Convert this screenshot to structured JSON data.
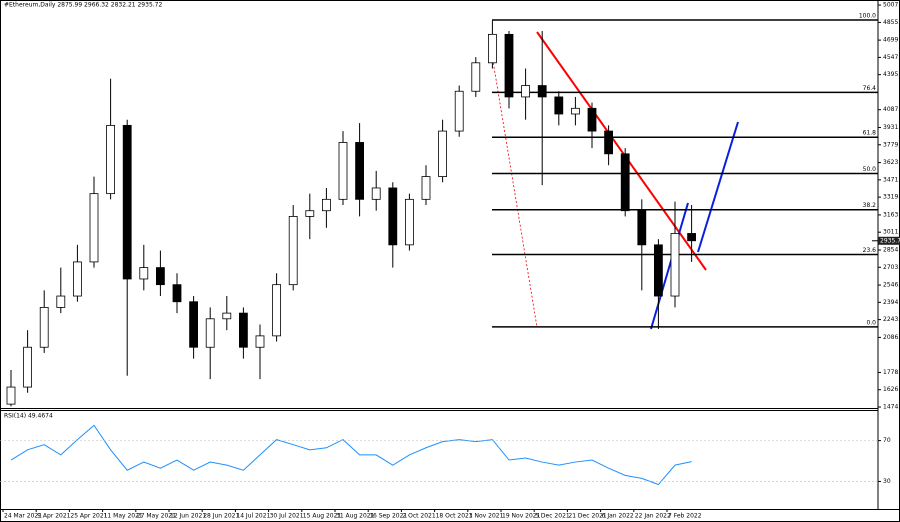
{
  "chart_data": [
    {
      "type": "candlestick",
      "title": "#Ethereum,Daily  2875.99 2966.32 2832.21 2935.72",
      "categories": [
        "24 Mar 2021",
        null,
        "9 Apr 2021",
        null,
        "25 Apr 2021",
        null,
        "11 May 2021",
        null,
        "27 May 2021",
        null,
        "12 Jun 2021",
        null,
        "28 Jun 2021",
        null,
        "14 Jul 2021",
        null,
        "30 Jul 2021",
        null,
        "15 Aug 2021",
        null,
        "31 Aug 2021",
        null,
        "16 Sep 2021",
        null,
        "2 Oct 2021",
        null,
        "18 Oct 2021",
        null,
        "3 Nov 2021",
        null,
        "19 Nov 2021",
        null,
        "5 Dec 2021",
        null,
        "21 Dec 2021",
        null,
        "6 Jan 2022",
        null,
        "22 Jan 2022",
        null,
        "7 Feb 2022",
        null
      ],
      "open": [
        1500,
        1650,
        2000,
        2350,
        2450,
        2750,
        3350,
        3950,
        2600,
        2700,
        2550,
        2400,
        2000,
        2250,
        2300,
        2000,
        2100,
        2550,
        3150,
        3200,
        3300,
        3800,
        3300,
        3400,
        2900,
        3300,
        3500,
        3900,
        4250,
        4500,
        4750,
        4200,
        4300,
        4200,
        4050,
        4100,
        3900,
        3700,
        3200,
        2900,
        2450,
        3000
      ],
      "high": [
        1800,
        2150,
        2500,
        2700,
        2900,
        3500,
        4360,
        4000,
        2900,
        2850,
        2650,
        2450,
        2350,
        2450,
        2350,
        2200,
        2650,
        3250,
        3350,
        3400,
        3900,
        3970,
        3550,
        3450,
        3350,
        3600,
        4000,
        4300,
        4550,
        4870,
        4780,
        4450,
        4780,
        4250,
        4200,
        4150,
        3950,
        3750,
        3300,
        2950,
        3280,
        3250
      ],
      "low": [
        1480,
        1600,
        1950,
        2300,
        2400,
        2700,
        3300,
        1750,
        2500,
        2450,
        2300,
        1900,
        1720,
        2150,
        1900,
        1720,
        2050,
        2500,
        2950,
        3050,
        3250,
        3150,
        3200,
        2700,
        2850,
        3250,
        3450,
        3850,
        4200,
        4450,
        4100,
        4000,
        3425,
        3950,
        3950,
        3750,
        3600,
        3150,
        2500,
        2160,
        2350,
        2750
      ],
      "close": [
        1650,
        2000,
        2350,
        2450,
        2750,
        3350,
        3950,
        2600,
        2700,
        2550,
        2400,
        2000,
        2250,
        2300,
        2000,
        2100,
        2550,
        3150,
        3200,
        3300,
        3800,
        3300,
        3400,
        2900,
        3300,
        3500,
        3900,
        4250,
        4500,
        4750,
        4200,
        4300,
        4200,
        4050,
        4100,
        3900,
        3700,
        3200,
        2900,
        2450,
        3000,
        2936
      ],
      "ylim": [
        1466,
        5052
      ],
      "yticks": [
        {
          "value": 5007.6,
          "label": "5007.60"
        },
        {
          "value": 4855,
          "label": "4855.00"
        },
        {
          "value": 4699.4,
          "label": "4699.40"
        },
        {
          "value": 4547.6,
          "label": "4547.60"
        },
        {
          "value": 4395.8,
          "label": "4395.80"
        },
        {
          "value": 4087.6,
          "label": "4087.60"
        },
        {
          "value": 3931.2,
          "label": "3931.20"
        },
        {
          "value": 3779.4,
          "label": "3779.40"
        },
        {
          "value": 3623,
          "label": "3623.00"
        },
        {
          "value": 3471.2,
          "label": "3471.20"
        },
        {
          "value": 3319.4,
          "label": "3319.40"
        },
        {
          "value": 3163,
          "label": "3163.00"
        },
        {
          "value": 3011.2,
          "label": "3011.20"
        },
        {
          "value": 2854.8,
          "label": "2854.80"
        },
        {
          "value": 2703,
          "label": "2703.00"
        },
        {
          "value": 2546.6,
          "label": "2546.60"
        },
        {
          "value": 2394.8,
          "label": "2394.80"
        },
        {
          "value": 2243,
          "label": "2243.00"
        },
        {
          "value": 2086.6,
          "label": "2086.60"
        },
        {
          "value": 1778.4,
          "label": "1778.40"
        },
        {
          "value": 1626.6,
          "label": "1626.60"
        },
        {
          "value": 1474.8,
          "label": "1474.80"
        }
      ],
      "last_price": 2935.72,
      "fib_levels": [
        {
          "value": 4876,
          "label": "100.0"
        },
        {
          "value": 4240,
          "label": "76.4"
        },
        {
          "value": 3846,
          "label": "61.8"
        },
        {
          "value": 3527,
          "label": "50.0"
        },
        {
          "value": 3209,
          "label": "38.2"
        },
        {
          "value": 2815,
          "label": "23.6"
        },
        {
          "value": 2179,
          "label": "0.0"
        }
      ],
      "color": "#000000"
    },
    {
      "type": "line",
      "title": "RSI(14) 49.4674",
      "values": [
        51,
        61,
        66,
        56,
        71,
        85,
        61,
        41,
        49,
        43,
        51,
        41,
        49,
        46,
        41,
        56,
        71,
        66,
        61,
        63,
        71,
        56,
        56,
        46,
        56,
        63,
        69,
        71,
        69,
        71,
        51,
        53,
        49,
        46,
        49,
        51,
        43,
        36,
        33,
        27,
        46,
        49.4674
      ],
      "color": "#1e90ff",
      "ylim": [
        4,
        100
      ],
      "yticks": [
        70,
        30
      ]
    }
  ]
}
